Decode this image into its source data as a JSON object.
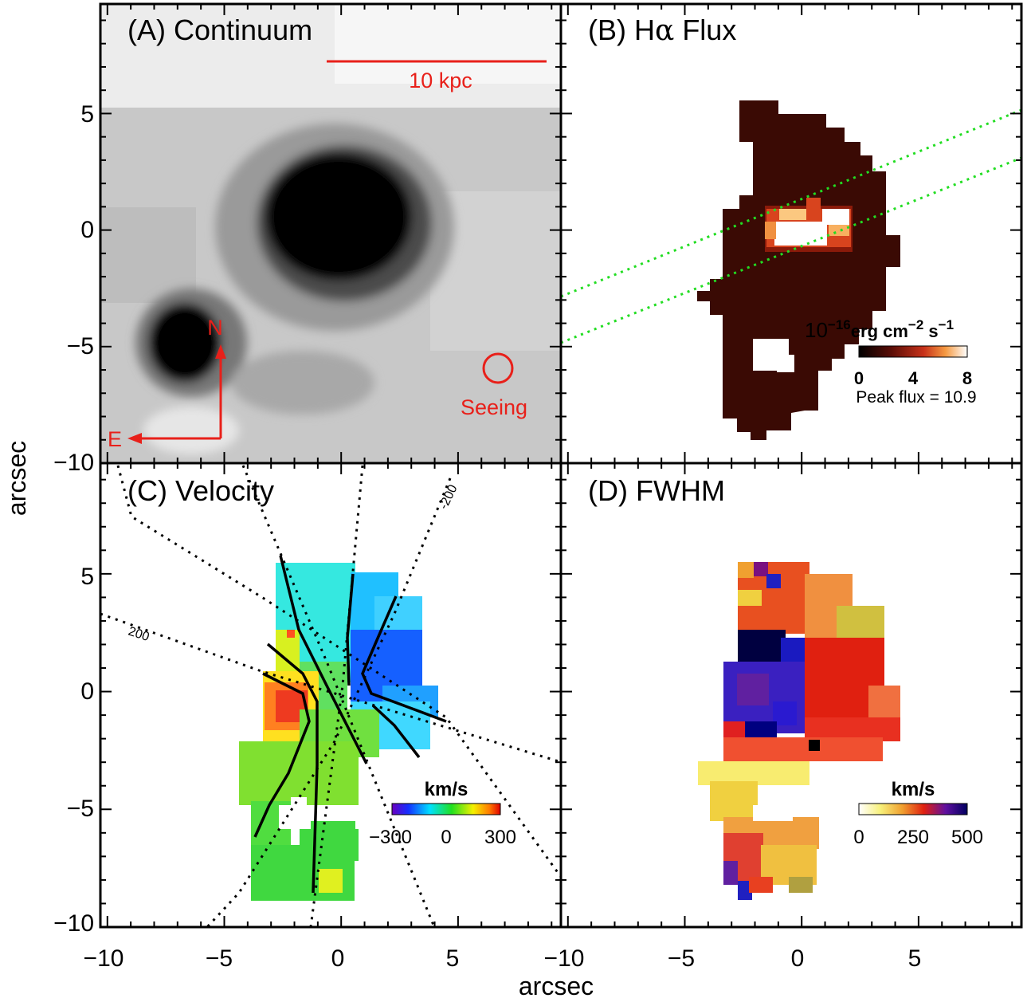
{
  "figure": {
    "y_label": "arcsec",
    "x_label": "arcsec",
    "panels": [
      {
        "id": "A",
        "title": "(A) Continuum",
        "scalebar_label": "10 kpc",
        "seeing_label": "Seeing",
        "north_label": "N",
        "east_label": "E"
      },
      {
        "id": "B",
        "title_prefix": "(B) H",
        "title_alpha": "α",
        "title_suffix": " Flux",
        "colorbar_unit_base": "10",
        "colorbar_unit_exp": "−16",
        "colorbar_unit_rest": "erg cm",
        "colorbar_unit_exp2": "−2",
        "colorbar_unit_s": " s",
        "colorbar_unit_exp3": "−1",
        "colorbar_ticks": [
          "0",
          "4",
          "8"
        ],
        "peak_label": "Peak flux = 10.9"
      },
      {
        "id": "C",
        "title": "(C) Velocity",
        "colorbar_unit": "km/s",
        "colorbar_ticks": [
          "−300",
          "0",
          "300"
        ],
        "contour_labels": [
          "-200",
          "200"
        ]
      },
      {
        "id": "D",
        "title": "(D) FWHM",
        "colorbar_unit": "km/s",
        "colorbar_ticks": [
          "0",
          "250",
          "500"
        ]
      }
    ],
    "y_ticks": [
      "5",
      "0",
      "−5",
      "−10"
    ],
    "x_ticks": [
      "−10",
      "−5",
      "0",
      "5"
    ]
  },
  "colors": {
    "frame": "#000000",
    "annotation_red": "#e8201a",
    "contour_blue": "#1f2fd6",
    "slit_green": "#22dd22",
    "flux_background": "#3a0a04"
  }
}
